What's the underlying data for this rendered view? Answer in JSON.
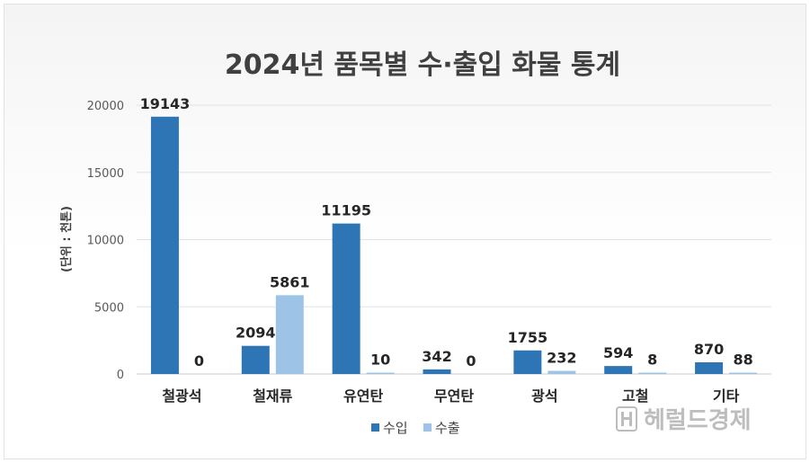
{
  "chart_data": {
    "type": "bar",
    "title": "2024년 품목별 수·출입 화물 통계",
    "ylabel": "(단위 : 천톤)",
    "xlabel": "",
    "ylim": [
      0,
      20000
    ],
    "yticks": [
      0,
      5000,
      10000,
      15000,
      20000
    ],
    "categories": [
      "철광석",
      "철재류",
      "유연탄",
      "무연탄",
      "광석",
      "고철",
      "기타"
    ],
    "series": [
      {
        "name": "수입",
        "color": "#2E75B6",
        "values": [
          19143,
          2094,
          11195,
          342,
          1755,
          594,
          870
        ]
      },
      {
        "name": "수출",
        "color": "#9DC3E6",
        "values": [
          0,
          5861,
          10,
          0,
          232,
          8,
          88
        ]
      }
    ],
    "grid": true,
    "legend": "bottom"
  },
  "watermark": {
    "text": "헤럴드경제"
  }
}
